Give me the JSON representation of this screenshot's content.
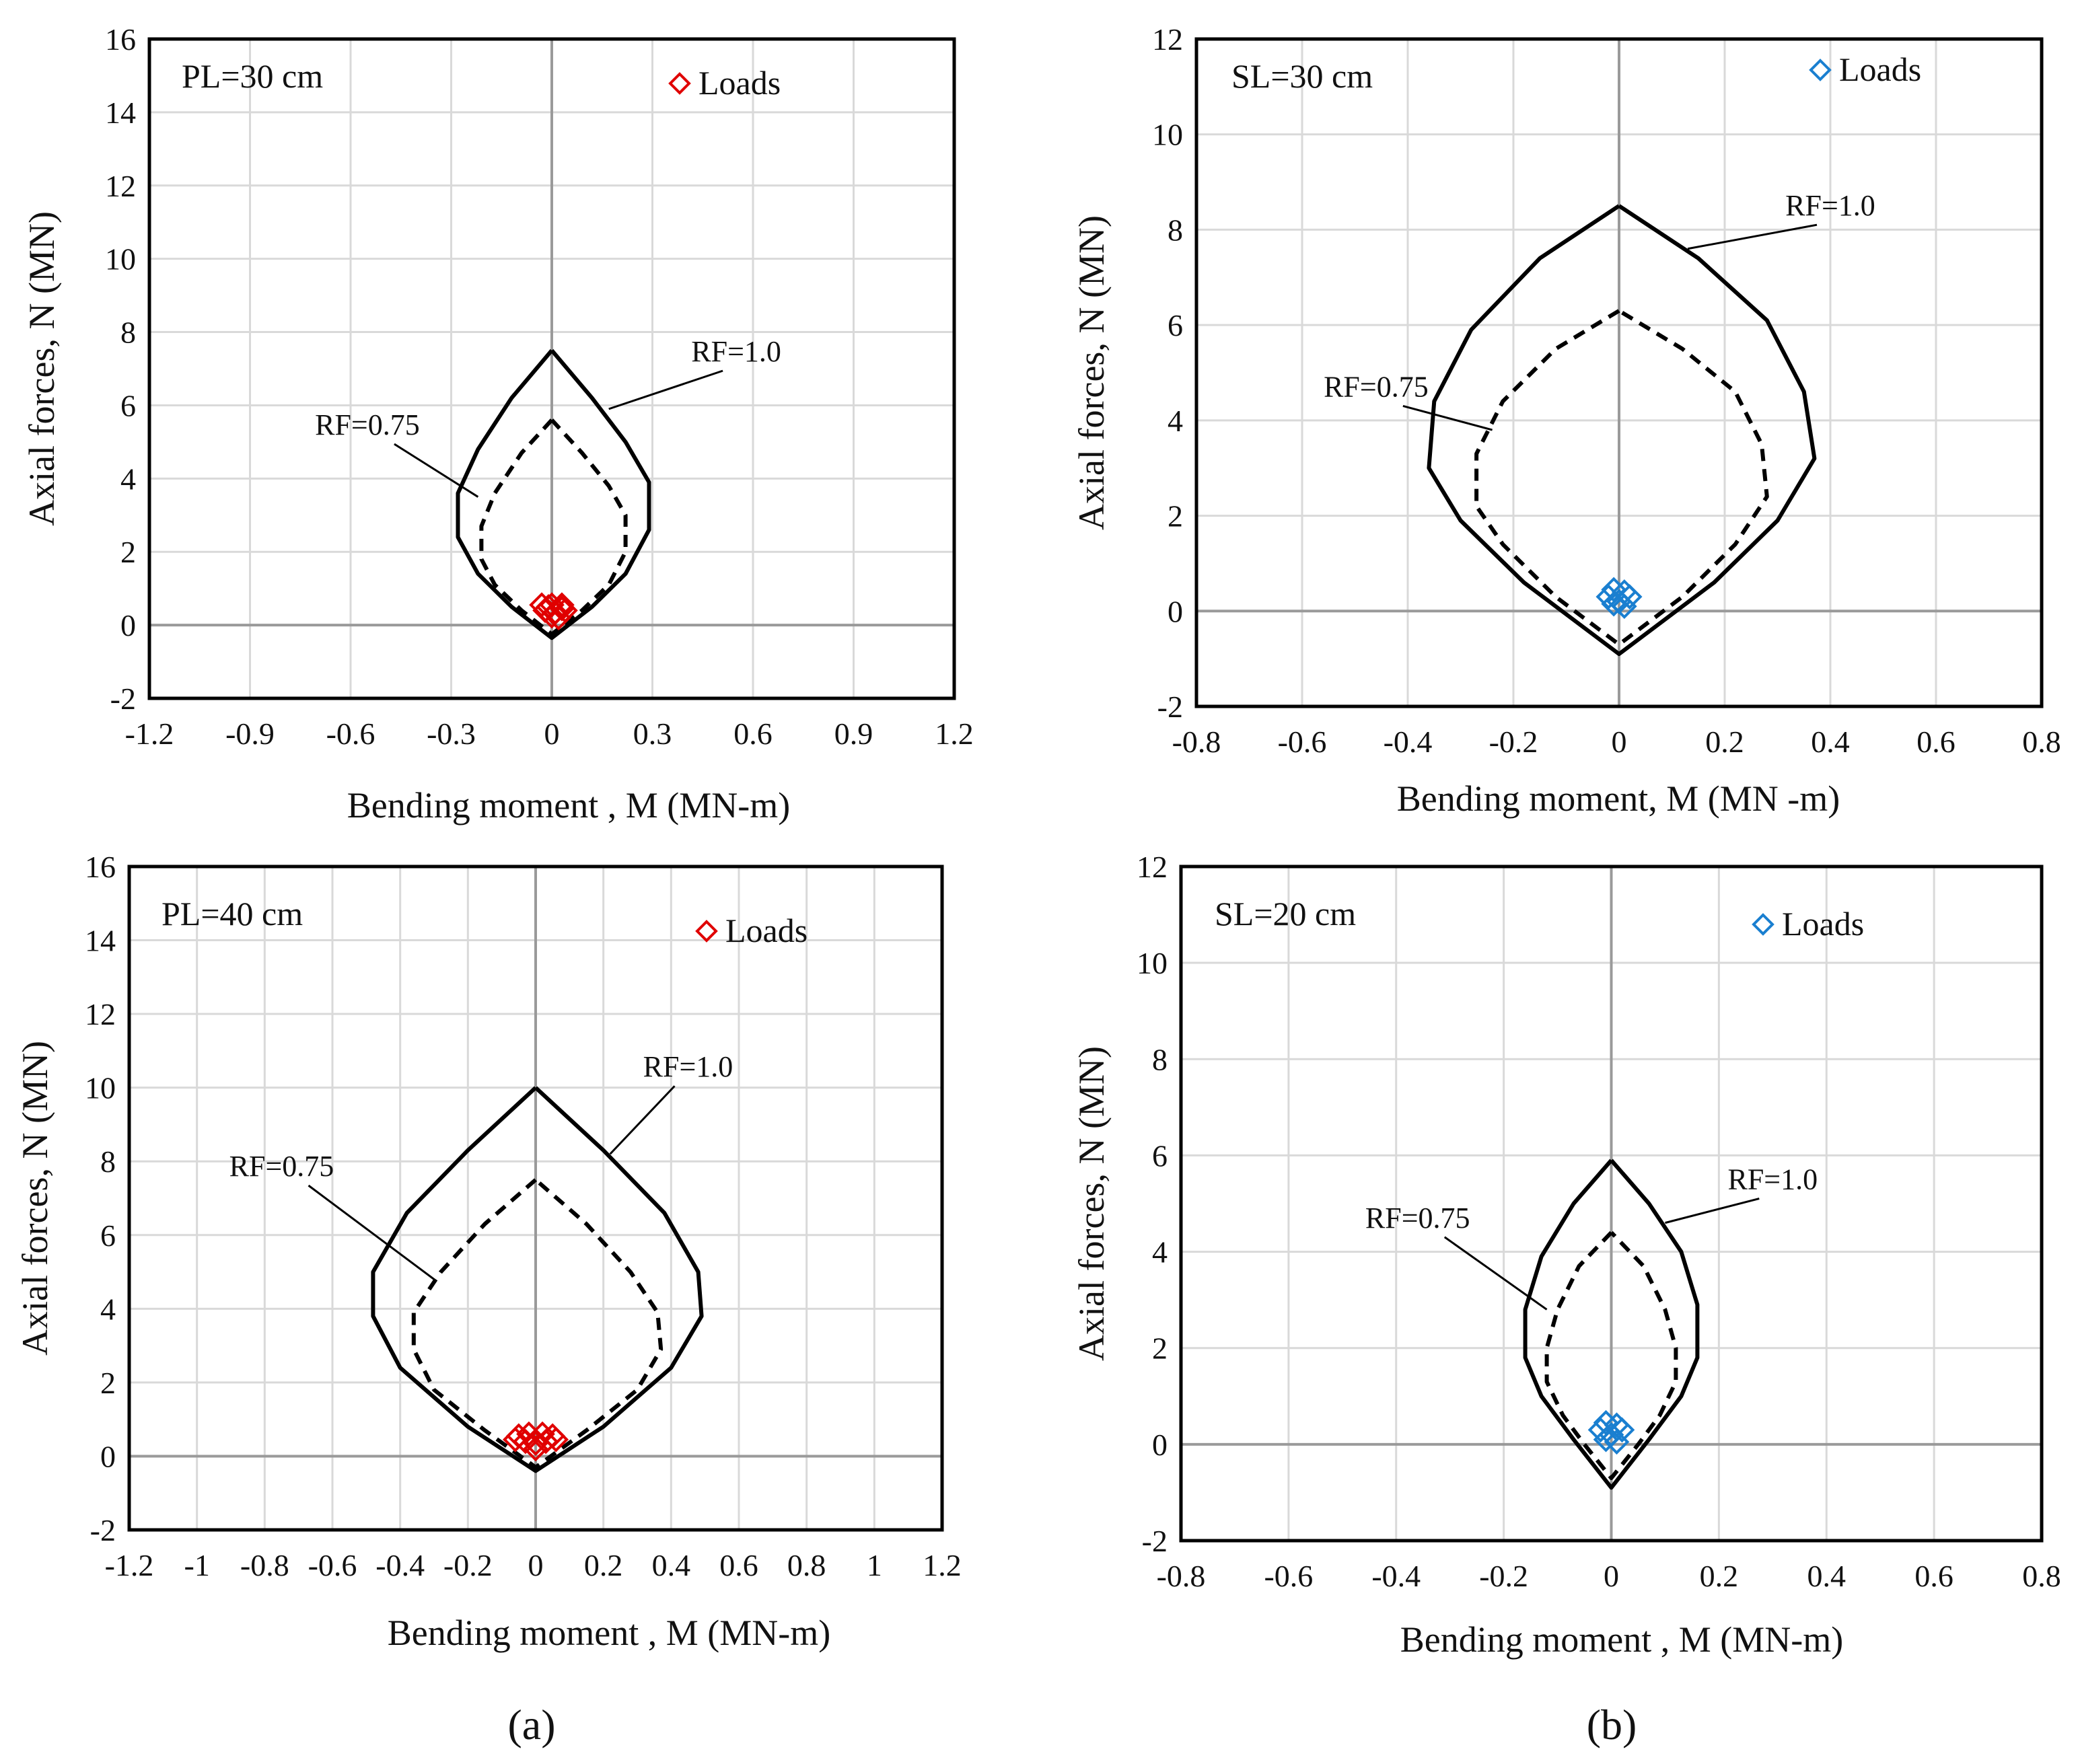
{
  "figure": {
    "panel_labels": [
      "(a)",
      "(b)"
    ]
  },
  "colors": {
    "pl_loads": "#e00000",
    "sl_loads": "#1a7fd0",
    "curves": "#000000",
    "grid": "#d9d9d9"
  },
  "chart_data": [
    {
      "type": "line",
      "title": "PL=30 cm",
      "xlabel": "Bending  moment , M (MN-m)",
      "ylabel": "Axial  forces, N (MN)",
      "xlim": [
        -1.2,
        1.2
      ],
      "ylim": [
        -2,
        16
      ],
      "xticks": [
        -1.2,
        -0.9,
        -0.6,
        -0.3,
        0,
        0.3,
        0.6,
        0.9,
        1.2
      ],
      "xtick_labels": [
        "-1.2",
        "-0.9",
        "-0.6",
        "-0.3",
        "0",
        "0.3",
        "0.6",
        "0.9",
        "1.2"
      ],
      "yticks": [
        -2,
        0,
        2,
        4,
        6,
        8,
        10,
        12,
        14,
        16
      ],
      "ytick_labels": [
        "-2",
        "0",
        "2",
        "4",
        "6",
        "8",
        "10",
        "12",
        "14",
        "16"
      ],
      "legend": "top-right",
      "legend_label": "Loads",
      "marker_color": "#e00000",
      "series": [
        {
          "name": "RF=1.0",
          "style": "solid",
          "label": "RF=1.0",
          "points": [
            [
              0,
              7.5
            ],
            [
              -0.12,
              6.2
            ],
            [
              -0.22,
              4.8
            ],
            [
              -0.28,
              3.6
            ],
            [
              -0.28,
              2.4
            ],
            [
              -0.22,
              1.4
            ],
            [
              -0.12,
              0.5
            ],
            [
              0,
              -0.35
            ],
            [
              0.12,
              0.5
            ],
            [
              0.22,
              1.4
            ],
            [
              0.29,
              2.6
            ],
            [
              0.29,
              3.9
            ],
            [
              0.22,
              5.0
            ],
            [
              0.12,
              6.2
            ],
            [
              0,
              7.5
            ]
          ]
        },
        {
          "name": "RF=0.75",
          "style": "dashed",
          "label": "RF=0.75",
          "points": [
            [
              0,
              5.6
            ],
            [
              -0.09,
              4.7
            ],
            [
              -0.17,
              3.6
            ],
            [
              -0.21,
              2.7
            ],
            [
              -0.21,
              1.8
            ],
            [
              -0.17,
              1.1
            ],
            [
              -0.09,
              0.4
            ],
            [
              0,
              -0.25
            ],
            [
              0.09,
              0.4
            ],
            [
              0.17,
              1.1
            ],
            [
              0.22,
              2.0
            ],
            [
              0.22,
              3.0
            ],
            [
              0.17,
              3.8
            ],
            [
              0.09,
              4.7
            ],
            [
              0,
              5.6
            ]
          ]
        }
      ],
      "loads": [
        [
          -0.03,
          0.55
        ],
        [
          0.0,
          0.55
        ],
        [
          0.03,
          0.55
        ],
        [
          -0.02,
          0.4
        ],
        [
          0.01,
          0.35
        ],
        [
          0.04,
          0.4
        ],
        [
          0.0,
          0.25
        ],
        [
          0.02,
          0.2
        ],
        [
          -0.01,
          0.5
        ],
        [
          0.03,
          0.45
        ]
      ],
      "annotations": [
        {
          "text": "RF=1.0",
          "x": 0.55,
          "y": 7.2,
          "arrow_to": [
            0.17,
            5.9
          ]
        },
        {
          "text": "RF=0.75",
          "x": -0.55,
          "y": 5.2,
          "arrow_to": [
            -0.22,
            3.5
          ]
        }
      ]
    },
    {
      "type": "line",
      "title": "SL=30 cm",
      "xlabel": "Bending  moment, M (MN   -m)",
      "ylabel": "Axial  forces, N (MN)",
      "xlim": [
        -0.8,
        0.8
      ],
      "ylim": [
        -2,
        12
      ],
      "xticks": [
        -0.8,
        -0.6,
        -0.4,
        -0.2,
        0,
        0.2,
        0.4,
        0.6,
        0.8
      ],
      "xtick_labels": [
        "-0.8",
        "-0.6",
        "-0.4",
        "-0.2",
        "0",
        "0.2",
        "0.4",
        "0.6",
        "0.8"
      ],
      "yticks": [
        -2,
        0,
        2,
        4,
        6,
        8,
        10,
        12
      ],
      "ytick_labels": [
        "-2",
        "0",
        "2",
        "4",
        "6",
        "8",
        "10",
        "12"
      ],
      "legend": "top-right",
      "legend_label": "Loads",
      "marker_color": "#1a7fd0",
      "series": [
        {
          "name": "RF=1.0",
          "style": "solid",
          "label": "RF=1.0",
          "points": [
            [
              0,
              8.5
            ],
            [
              -0.15,
              7.4
            ],
            [
              -0.28,
              5.9
            ],
            [
              -0.35,
              4.4
            ],
            [
              -0.36,
              3.0
            ],
            [
              -0.3,
              1.9
            ],
            [
              -0.18,
              0.6
            ],
            [
              0,
              -0.9
            ],
            [
              0.18,
              0.6
            ],
            [
              0.3,
              1.9
            ],
            [
              0.37,
              3.2
            ],
            [
              0.35,
              4.6
            ],
            [
              0.28,
              6.1
            ],
            [
              0.15,
              7.4
            ],
            [
              0,
              8.5
            ]
          ]
        },
        {
          "name": "RF=0.75",
          "style": "dashed",
          "label": "RF=0.75",
          "points": [
            [
              0,
              6.3
            ],
            [
              -0.12,
              5.5
            ],
            [
              -0.22,
              4.4
            ],
            [
              -0.27,
              3.3
            ],
            [
              -0.27,
              2.2
            ],
            [
              -0.22,
              1.4
            ],
            [
              -0.12,
              0.3
            ],
            [
              0,
              -0.7
            ],
            [
              0.12,
              0.3
            ],
            [
              0.22,
              1.4
            ],
            [
              0.28,
              2.4
            ],
            [
              0.27,
              3.5
            ],
            [
              0.22,
              4.6
            ],
            [
              0.12,
              5.5
            ],
            [
              0,
              6.3
            ]
          ]
        }
      ],
      "loads": [
        [
          -0.01,
          0.45
        ],
        [
          0.01,
          0.4
        ],
        [
          -0.02,
          0.3
        ],
        [
          0.02,
          0.3
        ],
        [
          0,
          0.2
        ],
        [
          -0.01,
          0.15
        ],
        [
          0.01,
          0.1
        ]
      ],
      "annotations": [
        {
          "text": "RF=1.0",
          "x": 0.4,
          "y": 8.3,
          "arrow_to": [
            0.13,
            7.6
          ]
        },
        {
          "text": "RF=0.75",
          "x": -0.46,
          "y": 4.5,
          "arrow_to": [
            -0.24,
            3.8
          ]
        }
      ]
    },
    {
      "type": "line",
      "title": "PL=40 cm",
      "xlabel": "Bending  moment , M (MN-m)",
      "ylabel": "Axial  forces, N (MN)",
      "xlim": [
        -1.2,
        1.2
      ],
      "ylim": [
        -2,
        16
      ],
      "xticks": [
        -1.2,
        -1,
        -0.8,
        -0.6,
        -0.4,
        -0.2,
        0,
        0.2,
        0.4,
        0.6,
        0.8,
        1,
        1.2
      ],
      "xtick_labels": [
        "-1.2",
        "-1",
        "-0.8",
        "-0.6",
        "-0.4",
        "-0.2",
        "0",
        "0.2",
        "0.4",
        "0.6",
        "0.8",
        "1",
        "1.2"
      ],
      "yticks": [
        -2,
        0,
        2,
        4,
        6,
        8,
        10,
        12,
        14,
        16
      ],
      "ytick_labels": [
        "-2",
        "0",
        "2",
        "4",
        "6",
        "8",
        "10",
        "12",
        "14",
        "16"
      ],
      "legend": "top-right",
      "legend_label": "Loads",
      "marker_color": "#e00000",
      "series": [
        {
          "name": "RF=1.0",
          "style": "solid",
          "label": "RF=1.0",
          "points": [
            [
              0,
              10.0
            ],
            [
              -0.2,
              8.3
            ],
            [
              -0.38,
              6.6
            ],
            [
              -0.48,
              5.0
            ],
            [
              -0.48,
              3.8
            ],
            [
              -0.4,
              2.4
            ],
            [
              -0.2,
              0.8
            ],
            [
              0,
              -0.4
            ],
            [
              0.2,
              0.8
            ],
            [
              0.4,
              2.4
            ],
            [
              0.49,
              3.8
            ],
            [
              0.48,
              5.0
            ],
            [
              0.38,
              6.6
            ],
            [
              0.2,
              8.3
            ],
            [
              0,
              10.0
            ]
          ]
        },
        {
          "name": "RF=0.75",
          "style": "dashed",
          "label": "RF=0.75",
          "points": [
            [
              0,
              7.5
            ],
            [
              -0.15,
              6.3
            ],
            [
              -0.28,
              5.0
            ],
            [
              -0.36,
              3.9
            ],
            [
              -0.36,
              2.9
            ],
            [
              -0.3,
              1.8
            ],
            [
              -0.15,
              0.7
            ],
            [
              0,
              -0.3
            ],
            [
              0.15,
              0.7
            ],
            [
              0.3,
              1.8
            ],
            [
              0.37,
              2.9
            ],
            [
              0.36,
              3.9
            ],
            [
              0.28,
              5.0
            ],
            [
              0.15,
              6.3
            ],
            [
              0,
              7.5
            ]
          ]
        }
      ],
      "loads": [
        [
          -0.05,
          0.55
        ],
        [
          -0.02,
          0.6
        ],
        [
          0.02,
          0.6
        ],
        [
          0.05,
          0.55
        ],
        [
          -0.03,
          0.4
        ],
        [
          0,
          0.35
        ],
        [
          0.03,
          0.4
        ],
        [
          0,
          0.2
        ],
        [
          0.06,
          0.45
        ],
        [
          -0.06,
          0.45
        ]
      ],
      "annotations": [
        {
          "text": "RF=1.0",
          "x": 0.45,
          "y": 10.3,
          "arrow_to": [
            0.22,
            8.2
          ]
        },
        {
          "text": "RF=0.75",
          "x": -0.75,
          "y": 7.6,
          "arrow_to": [
            -0.3,
            4.8
          ]
        }
      ]
    },
    {
      "type": "line",
      "title": "SL=20 cm",
      "xlabel": "Bending  moment , M (MN-m)",
      "ylabel": "Axial  forces, N (MN)",
      "xlim": [
        -0.8,
        0.8
      ],
      "ylim": [
        -2,
        12
      ],
      "xticks": [
        -0.8,
        -0.6,
        -0.4,
        -0.2,
        0,
        0.2,
        0.4,
        0.6,
        0.8
      ],
      "xtick_labels": [
        "-0.8",
        "-0.6",
        "-0.4",
        "-0.2",
        "0",
        "0.2",
        "0.4",
        "0.6",
        "0.8"
      ],
      "yticks": [
        -2,
        0,
        2,
        4,
        6,
        8,
        10,
        12
      ],
      "ytick_labels": [
        "-2",
        "0",
        "2",
        "4",
        "6",
        "8",
        "10",
        "12"
      ],
      "legend": "top-right",
      "legend_label": "Loads",
      "marker_color": "#1a7fd0",
      "series": [
        {
          "name": "RF=1.0",
          "style": "solid",
          "label": "RF=1.0",
          "points": [
            [
              0,
              5.9
            ],
            [
              -0.07,
              5.0
            ],
            [
              -0.13,
              3.9
            ],
            [
              -0.16,
              2.8
            ],
            [
              -0.16,
              1.8
            ],
            [
              -0.13,
              1.0
            ],
            [
              -0.07,
              0.1
            ],
            [
              0,
              -0.9
            ],
            [
              0.07,
              0.1
            ],
            [
              0.13,
              1.0
            ],
            [
              0.16,
              1.8
            ],
            [
              0.16,
              2.9
            ],
            [
              0.13,
              4.0
            ],
            [
              0.07,
              5.0
            ],
            [
              0,
              5.9
            ]
          ]
        },
        {
          "name": "RF=0.75",
          "style": "dashed",
          "label": "RF=0.75",
          "points": [
            [
              0,
              4.4
            ],
            [
              -0.06,
              3.7
            ],
            [
              -0.1,
              2.8
            ],
            [
              -0.12,
              2.0
            ],
            [
              -0.12,
              1.3
            ],
            [
              -0.09,
              0.6
            ],
            [
              -0.05,
              0.0
            ],
            [
              0,
              -0.7
            ],
            [
              0.05,
              0.0
            ],
            [
              0.09,
              0.6
            ],
            [
              0.12,
              1.3
            ],
            [
              0.12,
              2.0
            ],
            [
              0.1,
              2.8
            ],
            [
              0.06,
              3.7
            ],
            [
              0,
              4.4
            ]
          ]
        }
      ],
      "loads": [
        [
          -0.01,
          0.45
        ],
        [
          0.01,
          0.4
        ],
        [
          -0.02,
          0.3
        ],
        [
          0.02,
          0.3
        ],
        [
          0,
          0.2
        ],
        [
          -0.01,
          0.1
        ],
        [
          0.01,
          0.05
        ]
      ],
      "annotations": [
        {
          "text": "RF=1.0",
          "x": 0.3,
          "y": 5.3,
          "arrow_to": [
            0.1,
            4.6
          ]
        },
        {
          "text": "RF=0.75",
          "x": -0.36,
          "y": 4.5,
          "arrow_to": [
            -0.12,
            2.8
          ]
        }
      ]
    }
  ]
}
